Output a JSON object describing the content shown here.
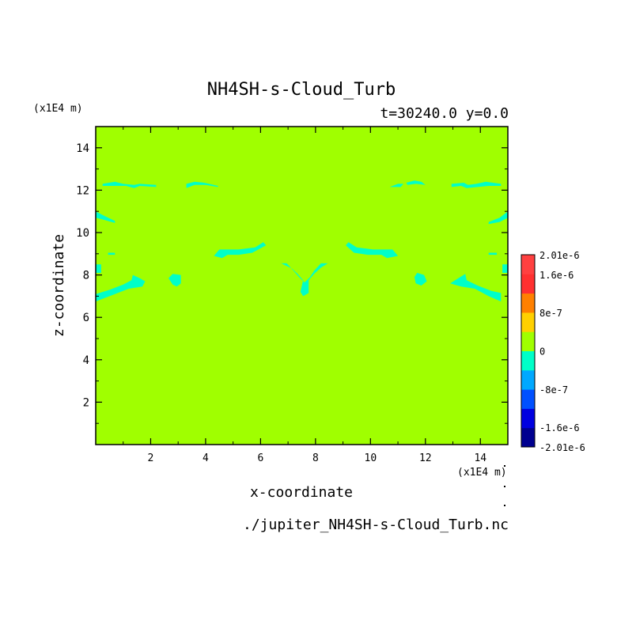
{
  "chart_data": {
    "type": "heatmap",
    "title": "NH4SH-s-Cloud_Turb",
    "subtitle": "t=30240.0 y=0.0",
    "xlabel": "x-coordinate",
    "ylabel": "z-coordinate",
    "x_unit": "(x1E4 m)",
    "y_unit": "(x1E4 m)",
    "xlim": [
      0.0,
      15.0
    ],
    "ylim": [
      0.0,
      15.0
    ],
    "x_ticks": [
      2,
      4,
      6,
      8,
      10,
      12,
      14
    ],
    "x_tick_labels": [
      "2",
      "4",
      "6",
      "8",
      "10",
      "12",
      "14"
    ],
    "y_ticks": [
      2,
      4,
      6,
      8,
      10,
      12,
      14
    ],
    "y_tick_labels": [
      "2",
      "4",
      "6",
      "8",
      "10",
      "12",
      "14"
    ],
    "background_level": "0",
    "colorbar": {
      "levels": [
        {
          "color": "#000090"
        },
        {
          "color": "#0000e0"
        },
        {
          "color": "#0050ff"
        },
        {
          "color": "#00a8ff"
        },
        {
          "color": "#00ffc8"
        },
        {
          "color": "#a0ff00"
        },
        {
          "color": "#ffd000"
        },
        {
          "color": "#ff8000"
        },
        {
          "color": "#ff3030"
        },
        {
          "color": "#ff4040"
        }
      ],
      "tick_labels": [
        {
          "label": "2.01e-6",
          "value": 2.01e-06
        },
        {
          "label": "1.6e-6",
          "value": 1.6e-06
        },
        {
          "label": "8e-7",
          "value": 8e-07
        },
        {
          "label": "0",
          "value": 0
        },
        {
          "label": "-8e-7",
          "value": -8e-07
        },
        {
          "label": "-1.6e-6",
          "value": -1.6e-06
        },
        {
          "label": "-2.01e-6",
          "value": -2.01e-06
        }
      ],
      "range": [
        -2.01e-06,
        2.01e-06
      ]
    },
    "negative_regions": [
      {
        "shape": [
          [
            0.25,
            12.3
          ],
          [
            0.7,
            12.4
          ],
          [
            1.0,
            12.3
          ],
          [
            1.4,
            12.25
          ],
          [
            1.6,
            12.3
          ],
          [
            2.2,
            12.25
          ],
          [
            2.2,
            12.15
          ],
          [
            1.6,
            12.2
          ],
          [
            1.4,
            12.1
          ],
          [
            1.1,
            12.2
          ],
          [
            0.7,
            12.2
          ],
          [
            0.25,
            12.2
          ]
        ]
      },
      {
        "shape": [
          [
            3.3,
            12.3
          ],
          [
            3.6,
            12.4
          ],
          [
            3.95,
            12.35
          ],
          [
            4.45,
            12.2
          ],
          [
            4.45,
            12.15
          ],
          [
            4.0,
            12.25
          ],
          [
            3.6,
            12.25
          ],
          [
            3.3,
            12.1
          ]
        ]
      },
      {
        "shape": [
          [
            0.0,
            11.0
          ],
          [
            0.3,
            10.8
          ],
          [
            0.7,
            10.55
          ],
          [
            0.7,
            10.45
          ],
          [
            0.3,
            10.6
          ],
          [
            0.0,
            10.7
          ]
        ]
      },
      {
        "shape": [
          [
            0.45,
            9.05
          ],
          [
            0.7,
            9.05
          ],
          [
            0.7,
            8.95
          ],
          [
            0.45,
            8.95
          ]
        ]
      },
      {
        "shape": [
          [
            0.0,
            8.5
          ],
          [
            0.2,
            8.5
          ],
          [
            0.2,
            8.1
          ],
          [
            0.0,
            8.1
          ]
        ]
      },
      {
        "shape": [
          [
            0.0,
            7.1
          ],
          [
            0.5,
            7.3
          ],
          [
            1.0,
            7.55
          ],
          [
            1.3,
            7.75
          ],
          [
            1.35,
            8.0
          ],
          [
            1.6,
            7.85
          ],
          [
            1.8,
            7.7
          ],
          [
            1.7,
            7.45
          ],
          [
            1.2,
            7.35
          ],
          [
            0.6,
            7.05
          ],
          [
            0.0,
            6.75
          ]
        ]
      },
      {
        "shape": [
          [
            2.8,
            8.05
          ],
          [
            3.1,
            8.0
          ],
          [
            3.1,
            7.6
          ],
          [
            2.95,
            7.45
          ],
          [
            2.8,
            7.55
          ],
          [
            2.65,
            7.85
          ]
        ]
      },
      {
        "shape": [
          [
            4.3,
            8.9
          ],
          [
            4.5,
            9.2
          ],
          [
            5.2,
            9.2
          ],
          [
            5.8,
            9.3
          ],
          [
            6.1,
            9.55
          ],
          [
            6.2,
            9.4
          ],
          [
            5.7,
            9.05
          ],
          [
            5.2,
            8.95
          ],
          [
            4.8,
            8.95
          ],
          [
            4.6,
            8.8
          ]
        ]
      },
      {
        "shape": [
          [
            6.75,
            8.55
          ],
          [
            7.15,
            8.3
          ],
          [
            7.35,
            8.05
          ],
          [
            7.55,
            7.75
          ],
          [
            7.45,
            7.2
          ],
          [
            7.55,
            7.0
          ],
          [
            7.75,
            7.15
          ],
          [
            7.75,
            7.75
          ],
          [
            7.95,
            8.05
          ],
          [
            8.2,
            8.35
          ],
          [
            8.45,
            8.55
          ],
          [
            8.2,
            8.55
          ],
          [
            7.95,
            8.2
          ],
          [
            7.8,
            7.9
          ],
          [
            7.6,
            7.65
          ],
          [
            7.4,
            7.9
          ],
          [
            7.2,
            8.2
          ],
          [
            6.95,
            8.55
          ]
        ]
      },
      {
        "shape": [
          [
            9.2,
            9.55
          ],
          [
            9.5,
            9.3
          ],
          [
            10.1,
            9.2
          ],
          [
            10.8,
            9.2
          ],
          [
            11.0,
            8.9
          ],
          [
            10.6,
            8.8
          ],
          [
            10.4,
            8.95
          ],
          [
            9.9,
            8.95
          ],
          [
            9.4,
            9.05
          ],
          [
            9.1,
            9.4
          ]
        ]
      },
      {
        "shape": [
          [
            10.7,
            12.15
          ],
          [
            11.0,
            12.3
          ],
          [
            11.2,
            12.3
          ],
          [
            11.1,
            12.15
          ]
        ]
      },
      {
        "shape": [
          [
            11.3,
            12.35
          ],
          [
            11.6,
            12.45
          ],
          [
            11.85,
            12.4
          ],
          [
            12.0,
            12.25
          ],
          [
            11.65,
            12.3
          ],
          [
            11.35,
            12.25
          ]
        ]
      },
      {
        "shape": [
          [
            12.95,
            12.3
          ],
          [
            13.4,
            12.35
          ],
          [
            13.55,
            12.25
          ],
          [
            13.85,
            12.3
          ],
          [
            14.2,
            12.4
          ],
          [
            14.75,
            12.3
          ],
          [
            14.75,
            12.2
          ],
          [
            14.3,
            12.2
          ],
          [
            13.9,
            12.15
          ],
          [
            13.5,
            12.1
          ],
          [
            13.3,
            12.2
          ],
          [
            12.95,
            12.15
          ]
        ]
      },
      {
        "shape": [
          [
            11.7,
            8.1
          ],
          [
            11.95,
            8.0
          ],
          [
            12.05,
            7.7
          ],
          [
            11.85,
            7.5
          ],
          [
            11.65,
            7.6
          ],
          [
            11.6,
            7.9
          ]
        ]
      },
      {
        "shape": [
          [
            12.9,
            7.6
          ],
          [
            13.2,
            7.85
          ],
          [
            13.45,
            8.05
          ],
          [
            13.5,
            7.75
          ],
          [
            13.9,
            7.5
          ],
          [
            14.4,
            7.25
          ],
          [
            14.75,
            7.15
          ],
          [
            14.75,
            6.75
          ],
          [
            14.3,
            7.0
          ],
          [
            13.8,
            7.35
          ],
          [
            13.3,
            7.45
          ]
        ]
      },
      {
        "shape": [
          [
            14.3,
            9.05
          ],
          [
            14.6,
            9.05
          ],
          [
            14.6,
            8.95
          ],
          [
            14.3,
            8.95
          ]
        ]
      },
      {
        "shape": [
          [
            14.8,
            8.5
          ],
          [
            15.0,
            8.5
          ],
          [
            15.0,
            8.1
          ],
          [
            14.8,
            8.1
          ]
        ]
      },
      {
        "shape": [
          [
            14.3,
            10.5
          ],
          [
            14.7,
            10.7
          ],
          [
            15.0,
            11.0
          ],
          [
            15.0,
            10.7
          ],
          [
            14.7,
            10.5
          ],
          [
            14.3,
            10.4
          ]
        ]
      }
    ],
    "source_file": "./jupiter_NH4SH-s-Cloud_Turb.nc",
    "grid": false,
    "legend": "right"
  }
}
